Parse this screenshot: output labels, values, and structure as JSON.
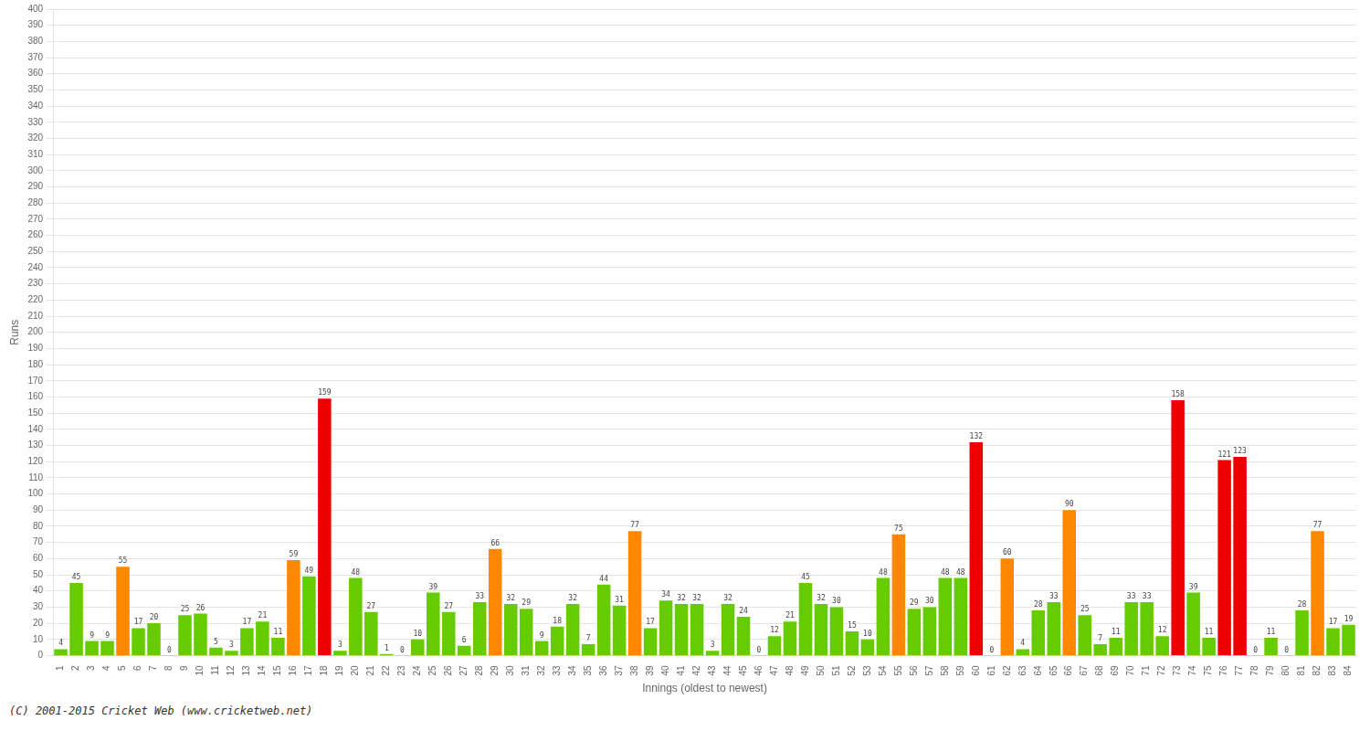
{
  "chart_data": {
    "type": "bar",
    "xlabel": "Innings (oldest to newest)",
    "ylabel": "Runs",
    "categories": [
      "1",
      "2",
      "3",
      "4",
      "5",
      "6",
      "7",
      "8",
      "9",
      "10",
      "11",
      "12",
      "13",
      "14",
      "15",
      "16",
      "17",
      "18",
      "19",
      "20",
      "21",
      "22",
      "23",
      "24",
      "25",
      "26",
      "27",
      "28",
      "29",
      "30",
      "31",
      "32",
      "33",
      "34",
      "35",
      "36",
      "37",
      "38",
      "39",
      "40",
      "41",
      "42",
      "43",
      "44",
      "45",
      "46",
      "47",
      "48",
      "49",
      "50",
      "51",
      "52",
      "53",
      "54",
      "55",
      "56",
      "57",
      "58",
      "59",
      "60",
      "61",
      "62",
      "63",
      "64",
      "65",
      "66",
      "67",
      "68",
      "69",
      "70",
      "71",
      "72",
      "73",
      "74",
      "75",
      "76",
      "77",
      "78",
      "79",
      "80",
      "81",
      "82",
      "83",
      "84"
    ],
    "values": [
      4,
      45,
      9,
      9,
      55,
      17,
      20,
      0,
      25,
      26,
      5,
      3,
      17,
      21,
      11,
      59,
      49,
      159,
      3,
      48,
      27,
      1,
      0,
      10,
      39,
      27,
      6,
      33,
      66,
      32,
      29,
      9,
      18,
      32,
      7,
      44,
      31,
      77,
      17,
      34,
      32,
      32,
      3,
      32,
      24,
      0,
      12,
      21,
      45,
      32,
      30,
      15,
      10,
      48,
      75,
      29,
      30,
      48,
      48,
      132,
      0,
      60,
      4,
      28,
      33,
      90,
      25,
      7,
      11,
      33,
      33,
      12,
      158,
      39,
      11,
      121,
      123,
      0,
      11,
      0,
      28,
      77,
      17,
      19
    ],
    "colors": [
      "#66cc00",
      "#66cc00",
      "#66cc00",
      "#66cc00",
      "#ff8800",
      "#66cc00",
      "#66cc00",
      "#66cc00",
      "#66cc00",
      "#66cc00",
      "#66cc00",
      "#66cc00",
      "#66cc00",
      "#66cc00",
      "#66cc00",
      "#ff8800",
      "#66cc00",
      "#ee0000",
      "#66cc00",
      "#66cc00",
      "#66cc00",
      "#66cc00",
      "#66cc00",
      "#66cc00",
      "#66cc00",
      "#66cc00",
      "#66cc00",
      "#66cc00",
      "#ff8800",
      "#66cc00",
      "#66cc00",
      "#66cc00",
      "#66cc00",
      "#66cc00",
      "#66cc00",
      "#66cc00",
      "#66cc00",
      "#ff8800",
      "#66cc00",
      "#66cc00",
      "#66cc00",
      "#66cc00",
      "#66cc00",
      "#66cc00",
      "#66cc00",
      "#66cc00",
      "#66cc00",
      "#66cc00",
      "#66cc00",
      "#66cc00",
      "#66cc00",
      "#66cc00",
      "#66cc00",
      "#66cc00",
      "#ff8800",
      "#66cc00",
      "#66cc00",
      "#66cc00",
      "#66cc00",
      "#ee0000",
      "#66cc00",
      "#ff8800",
      "#66cc00",
      "#66cc00",
      "#66cc00",
      "#ff8800",
      "#66cc00",
      "#66cc00",
      "#66cc00",
      "#66cc00",
      "#66cc00",
      "#66cc00",
      "#ee0000",
      "#66cc00",
      "#66cc00",
      "#ee0000",
      "#ee0000",
      "#66cc00",
      "#66cc00",
      "#66cc00",
      "#66cc00",
      "#ff8800",
      "#66cc00",
      "#66cc00"
    ],
    "ylim": [
      0,
      400
    ],
    "yticks": [
      0,
      10,
      20,
      30,
      40,
      50,
      60,
      70,
      80,
      90,
      100,
      110,
      120,
      130,
      140,
      150,
      160,
      170,
      180,
      190,
      200,
      210,
      220,
      230,
      240,
      250,
      260,
      270,
      280,
      290,
      300,
      310,
      320,
      330,
      340,
      350,
      360,
      370,
      380,
      390,
      400
    ],
    "grid": true,
    "data_labels": true,
    "annotations": [
      "(C) 2001-2015 Cricket Web (www.cricketweb.net)"
    ]
  }
}
